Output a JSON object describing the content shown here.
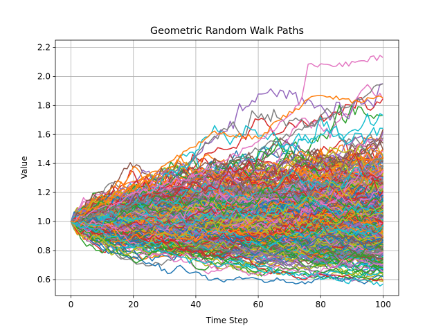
{
  "chart_data": {
    "type": "line",
    "title": "Geometric Random Walk Paths",
    "xlabel": "Time Step",
    "ylabel": "Value",
    "xlim": [
      -5,
      105
    ],
    "ylim": [
      0.49,
      2.25
    ],
    "x_ticks": [
      0,
      20,
      40,
      60,
      80,
      100
    ],
    "x_tick_labels": [
      "0",
      "20",
      "40",
      "60",
      "80",
      "100"
    ],
    "y_ticks": [
      0.6,
      0.8,
      1.0,
      1.2,
      1.4,
      1.6,
      1.8,
      2.0,
      2.2
    ],
    "y_tick_labels": [
      "0.6",
      "0.8",
      "1.0",
      "1.2",
      "1.4",
      "1.6",
      "1.8",
      "2.0",
      "2.2"
    ],
    "grid": true,
    "legend": "none",
    "num_steps": 100,
    "start_value": 1.0,
    "num_paths_approx": 500,
    "final_value_range": [
      0.57,
      2.17
    ],
    "colors": [
      "#1f77b4",
      "#ff7f0e",
      "#2ca02c",
      "#d62728",
      "#9467bd",
      "#8c564b",
      "#e377c2",
      "#7f7f7f",
      "#bcbd22",
      "#17becf"
    ],
    "highlighted_paths": [
      {
        "color": "#e377c2",
        "x": [
          0,
          20,
          40,
          60,
          70,
          74,
          76,
          80,
          85,
          90,
          95,
          100
        ],
        "y": [
          1.0,
          1.18,
          1.32,
          1.55,
          1.72,
          1.84,
          2.09,
          2.07,
          2.08,
          2.09,
          2.12,
          2.13
        ]
      },
      {
        "color": "#7f7f7f",
        "x": [
          0,
          20,
          40,
          60,
          80,
          90,
          100
        ],
        "y": [
          1.0,
          1.12,
          1.3,
          1.5,
          1.7,
          1.82,
          1.95
        ]
      },
      {
        "color": "#17becf",
        "x": [
          0,
          20,
          40,
          60,
          80,
          90,
          100
        ],
        "y": [
          1.0,
          0.84,
          0.72,
          0.67,
          0.62,
          0.59,
          0.57
        ]
      },
      {
        "color": "#ff7f0e",
        "x": [
          0,
          20,
          40,
          45,
          60,
          70,
          80,
          90,
          100
        ],
        "y": [
          1.0,
          1.25,
          1.52,
          1.62,
          1.58,
          1.75,
          1.88,
          1.82,
          1.85
        ]
      }
    ]
  }
}
